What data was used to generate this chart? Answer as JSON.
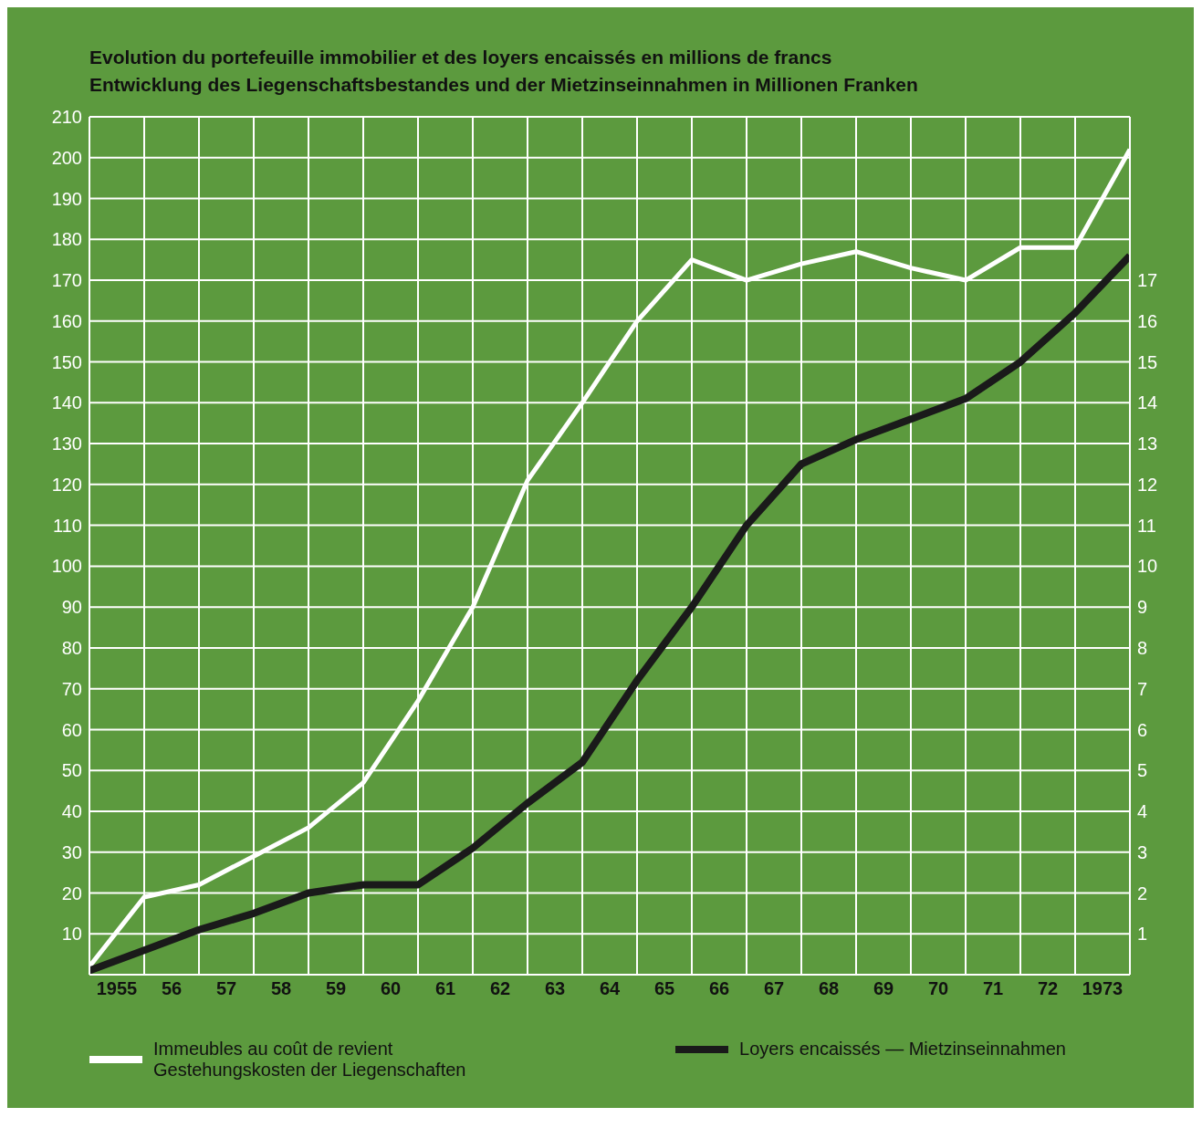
{
  "chart_data": {
    "type": "line",
    "title": "Evolution du portefeuille immobilier et des loyers encaissés en millions de francs",
    "subtitle": "Entwicklung des Liegenschaftsbestandes und der Mietzinseinnahmen in Millionen Franken",
    "x": [
      1954.5,
      1955.5,
      1956.5,
      1957.5,
      1958.5,
      1959.5,
      1960.5,
      1961.5,
      1962.5,
      1963.5,
      1964.5,
      1965.5,
      1966.5,
      1967.5,
      1968.5,
      1969.5,
      1970.5,
      1971.5,
      1972.5,
      1973.5
    ],
    "series": [
      {
        "name": "Immeubles au coût de revient\nGestehungskosten der Liegenschaften",
        "color": "#ffffff",
        "values": [
          2,
          19,
          22,
          29,
          36,
          47,
          67,
          90,
          121,
          140,
          160,
          175,
          170,
          174,
          177,
          173,
          170,
          178,
          178,
          202
        ]
      },
      {
        "name": "Loyers encaissés — Mietzinseinnahmen",
        "color": "#1a1a1a",
        "axis": "y2",
        "values": [
          0.1,
          0.6,
          1.1,
          1.5,
          2.0,
          2.2,
          2.2,
          3.1,
          4.2,
          5.2,
          7.2,
          9.0,
          11.0,
          12.5,
          13.1,
          13.6,
          14.1,
          15.0,
          16.2,
          17.6
        ]
      }
    ],
    "xlim": [
      1954.5,
      1973.5
    ],
    "xticks": [
      1955,
      {
        "value": 1956,
        "label": "56"
      },
      {
        "value": 1957,
        "label": "57"
      },
      {
        "value": 1958,
        "label": "58"
      },
      {
        "value": 1959,
        "label": "59"
      },
      {
        "value": 1960,
        "label": "60"
      },
      {
        "value": 1961,
        "label": "61"
      },
      {
        "value": 1962,
        "label": "62"
      },
      {
        "value": 1963,
        "label": "63"
      },
      {
        "value": 1964,
        "label": "64"
      },
      {
        "value": 1965,
        "label": "65"
      },
      {
        "value": 1966,
        "label": "66"
      },
      {
        "value": 1967,
        "label": "67"
      },
      {
        "value": 1968,
        "label": "68"
      },
      {
        "value": 1969,
        "label": "69"
      },
      {
        "value": 1970,
        "label": "70"
      },
      {
        "value": 1971,
        "label": "71"
      },
      {
        "value": 1972,
        "label": "72"
      },
      1973
    ],
    "ylim": [
      0,
      210
    ],
    "yticks": [
      10,
      20,
      30,
      40,
      50,
      60,
      70,
      80,
      90,
      100,
      110,
      120,
      130,
      140,
      150,
      160,
      170,
      180,
      190,
      200,
      210
    ],
    "y2lim": [
      0,
      21
    ],
    "y2ticks": [
      1,
      2,
      3,
      4,
      5,
      6,
      7,
      8,
      9,
      10,
      11,
      12,
      13,
      14,
      15,
      16,
      17
    ],
    "grid": true,
    "legend": "bottom",
    "marker": "none",
    "line_style": "solid"
  }
}
